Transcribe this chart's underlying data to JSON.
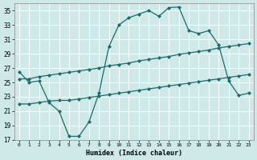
{
  "xlabel": "Humidex (Indice chaleur)",
  "bg_color": "#cfe9e9",
  "line_color": "#1a6b6b",
  "xlim": [
    -0.5,
    23.5
  ],
  "ylim": [
    17,
    36
  ],
  "yticks": [
    17,
    19,
    21,
    23,
    25,
    27,
    29,
    31,
    33,
    35
  ],
  "xticks": [
    0,
    1,
    2,
    3,
    4,
    5,
    6,
    7,
    8,
    9,
    10,
    11,
    12,
    13,
    14,
    15,
    16,
    17,
    18,
    19,
    20,
    21,
    22,
    23
  ],
  "series1_x": [
    0,
    1,
    2,
    3,
    4,
    5,
    6,
    7,
    8,
    9,
    10,
    11,
    12,
    13,
    14,
    15,
    16,
    17,
    18,
    19,
    20,
    21,
    22,
    23
  ],
  "series1_y": [
    26.5,
    25.0,
    25.2,
    22.2,
    21.0,
    17.5,
    17.5,
    19.5,
    23.5,
    30.0,
    33.0,
    34.0,
    34.5,
    35.0,
    34.2,
    35.4,
    35.5,
    32.2,
    31.8,
    32.2,
    30.2,
    25.2,
    23.2,
    23.5
  ],
  "series2_x": [
    0,
    1,
    2,
    3,
    4,
    5,
    6,
    7,
    8,
    9,
    10,
    11,
    12,
    13,
    14,
    15,
    16,
    17,
    18,
    19,
    20,
    21,
    22,
    23
  ],
  "series2_y": [
    25.5,
    25.5,
    25.8,
    26.0,
    26.2,
    26.4,
    26.6,
    26.8,
    27.0,
    27.3,
    27.5,
    27.7,
    28.0,
    28.2,
    28.4,
    28.6,
    28.9,
    29.1,
    29.3,
    29.5,
    29.8,
    30.0,
    30.2,
    30.4
  ],
  "series3_x": [
    0,
    1,
    2,
    3,
    4,
    5,
    6,
    7,
    8,
    9,
    10,
    11,
    12,
    13,
    14,
    15,
    16,
    17,
    18,
    19,
    20,
    21,
    22,
    23
  ],
  "series3_y": [
    22.0,
    22.0,
    22.2,
    22.4,
    22.5,
    22.5,
    22.7,
    22.9,
    23.1,
    23.3,
    23.5,
    23.7,
    23.9,
    24.1,
    24.3,
    24.5,
    24.7,
    24.9,
    25.1,
    25.3,
    25.5,
    25.7,
    25.9,
    26.1
  ]
}
